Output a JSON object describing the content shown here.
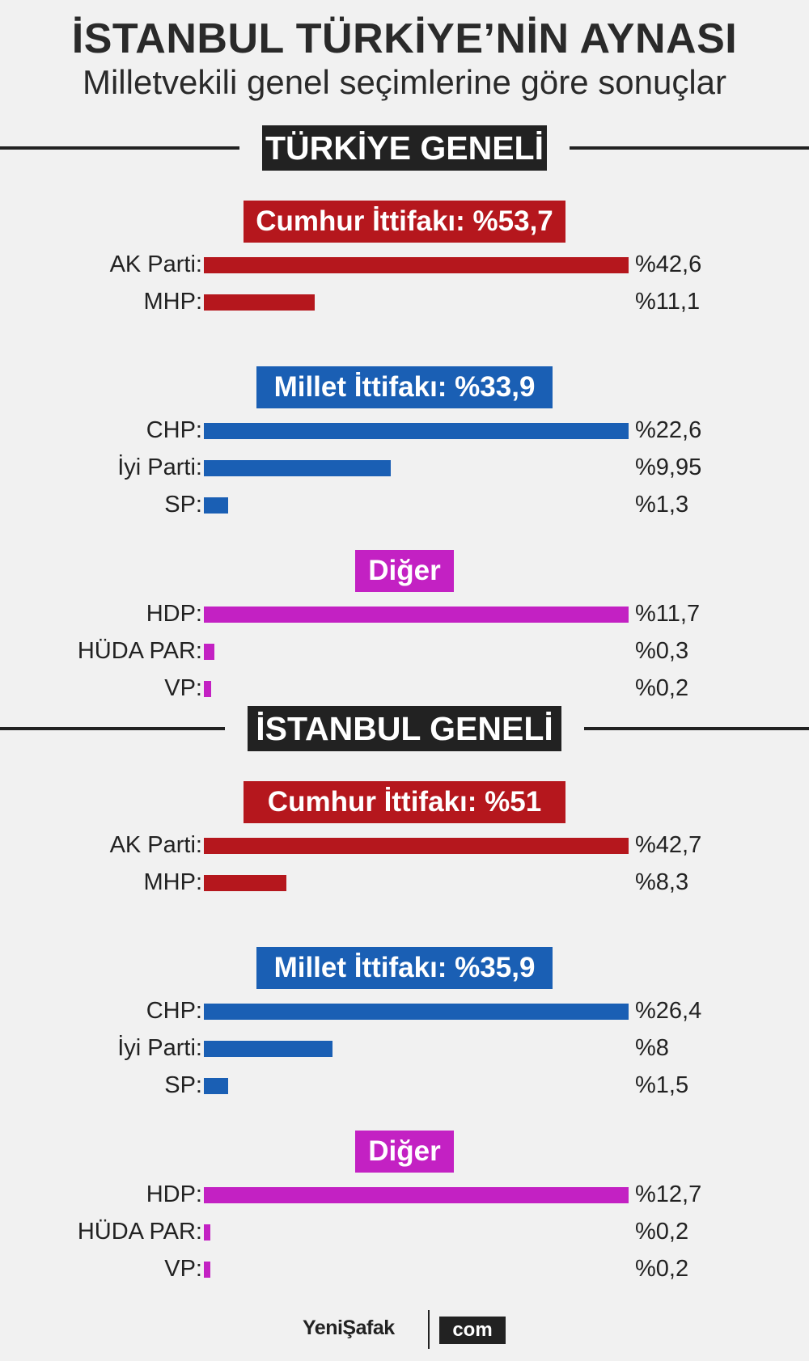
{
  "title": "İSTANBUL TÜRKİYE’NİN AYNASI",
  "subtitle": "Milletvekili genel seçimlerine göre sonuçlar",
  "colors": {
    "cumhur": "#b5171d",
    "millet": "#1a5fb4",
    "diger": "#c321c3",
    "rule": "#222222"
  },
  "chart_data": [
    {
      "type": "bar",
      "title": "TÜRKİYE GENELİ",
      "groups": [
        {
          "header": "Cumhur İttifakı: %53,7",
          "color_key": "cumhur",
          "parties": [
            {
              "label": "AK Parti:",
              "value": 42.6,
              "value_label": "%42,6"
            },
            {
              "label": "MHP:",
              "value": 11.1,
              "value_label": "%11,1"
            }
          ]
        },
        {
          "header": "Millet İttifakı: %33,9",
          "color_key": "millet",
          "parties": [
            {
              "label": "CHP:",
              "value": 22.6,
              "value_label": "%22,6"
            },
            {
              "label": "İyi Parti:",
              "value": 9.95,
              "value_label": "%9,95"
            },
            {
              "label": "SP:",
              "value": 1.3,
              "value_label": "%1,3"
            }
          ]
        },
        {
          "header": "Diğer",
          "color_key": "diger",
          "parties": [
            {
              "label": "HDP:",
              "value": 11.7,
              "value_label": "%11,7"
            },
            {
              "label": "HÜDA PAR:",
              "value": 0.3,
              "value_label": "%0,3"
            },
            {
              "label": "VP:",
              "value": 0.2,
              "value_label": "%0,2"
            }
          ]
        }
      ]
    },
    {
      "type": "bar",
      "title": "İSTANBUL GENELİ",
      "groups": [
        {
          "header": "Cumhur İttifakı: %51",
          "color_key": "cumhur",
          "parties": [
            {
              "label": "AK Parti:",
              "value": 42.7,
              "value_label": "%42,7"
            },
            {
              "label": "MHP:",
              "value": 8.3,
              "value_label": "%8,3"
            }
          ]
        },
        {
          "header": "Millet İttifakı: %35,9",
          "color_key": "millet",
          "parties": [
            {
              "label": "CHP:",
              "value": 26.4,
              "value_label": "%26,4"
            },
            {
              "label": "İyi Parti:",
              "value": 8,
              "value_label": "%8"
            },
            {
              "label": "SP:",
              "value": 1.5,
              "value_label": "%1,5"
            }
          ]
        },
        {
          "header": "Diğer",
          "color_key": "diger",
          "parties": [
            {
              "label": "HDP:",
              "value": 12.7,
              "value_label": "%12,7"
            },
            {
              "label": "HÜDA PAR:",
              "value": 0.2,
              "value_label": "%0,2"
            },
            {
              "label": "VP:",
              "value": 0.2,
              "value_label": "%0,2"
            }
          ]
        }
      ]
    }
  ],
  "footer": {
    "brand": "YeniŞafak",
    "domain": "com"
  }
}
